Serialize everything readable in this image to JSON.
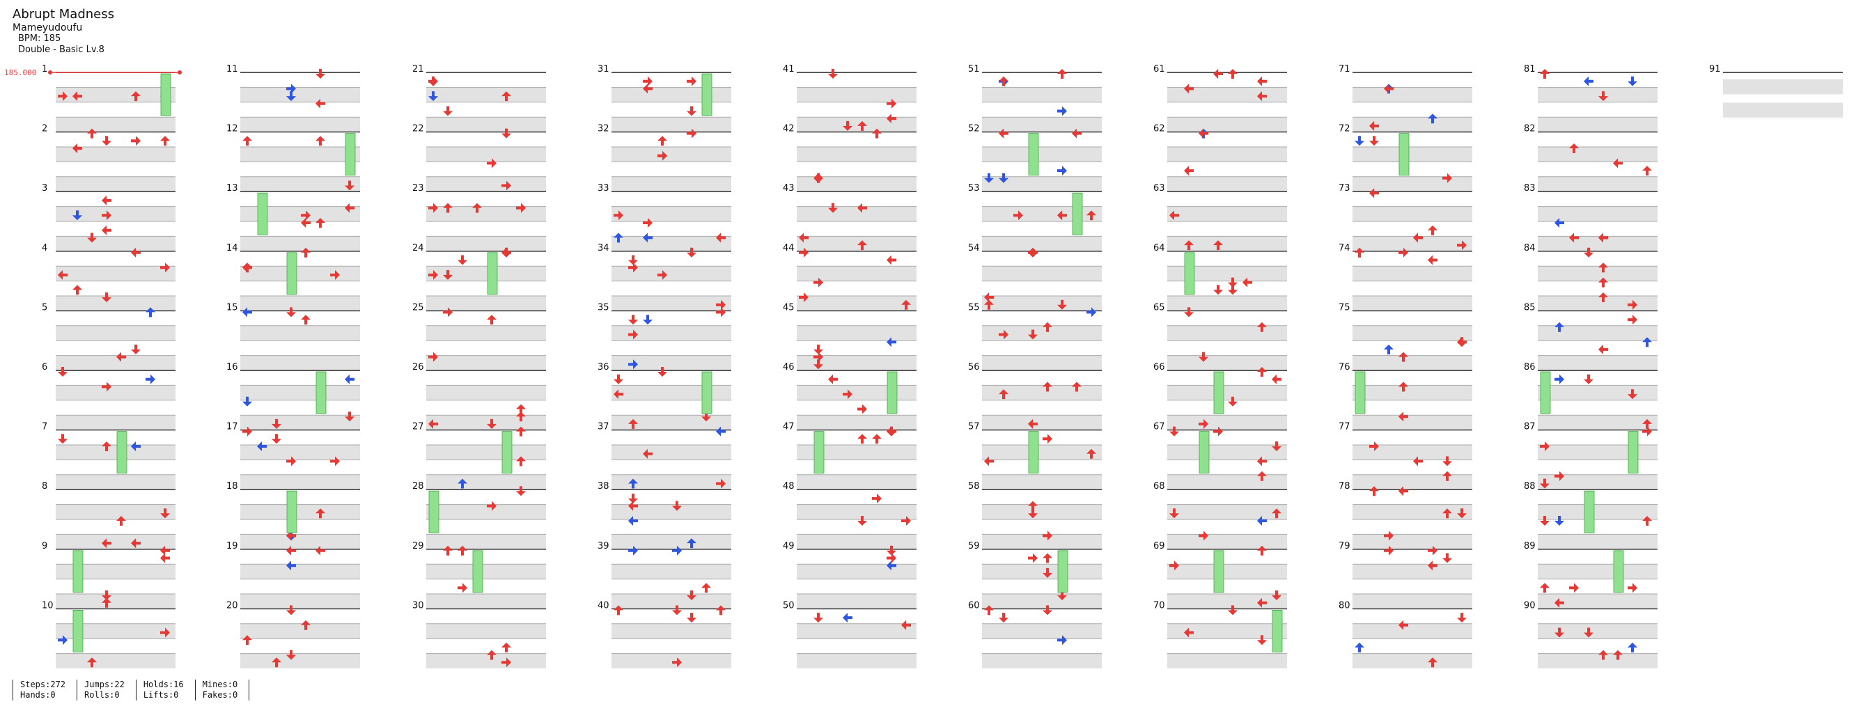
{
  "song": {
    "title": "Abrupt Madness",
    "artist": "Mameyudoufu",
    "bpm_text": "BPM: 185",
    "difficulty": "Double - Basic Lv.8"
  },
  "bpm_marker": "185.000",
  "stats": {
    "steps": "Steps:272",
    "hands": "Hands:0",
    "jumps": "Jumps:22",
    "rolls": "Rolls:0",
    "holds": "Holds:16",
    "lifts": "Lifts:0",
    "mines": "Mines:0",
    "fakes": "Fakes:0"
  },
  "colors": {
    "quarter": "#e53935",
    "eighth": "#2f56e0",
    "hold": "#8fe08f"
  },
  "icons": [
    "left-arrow-icon",
    "right-arrow-icon",
    "up-arrow-icon",
    "down-arrow-icon",
    "hold-note-icon"
  ],
  "measures_per_column": 10,
  "total_measures": 91
}
